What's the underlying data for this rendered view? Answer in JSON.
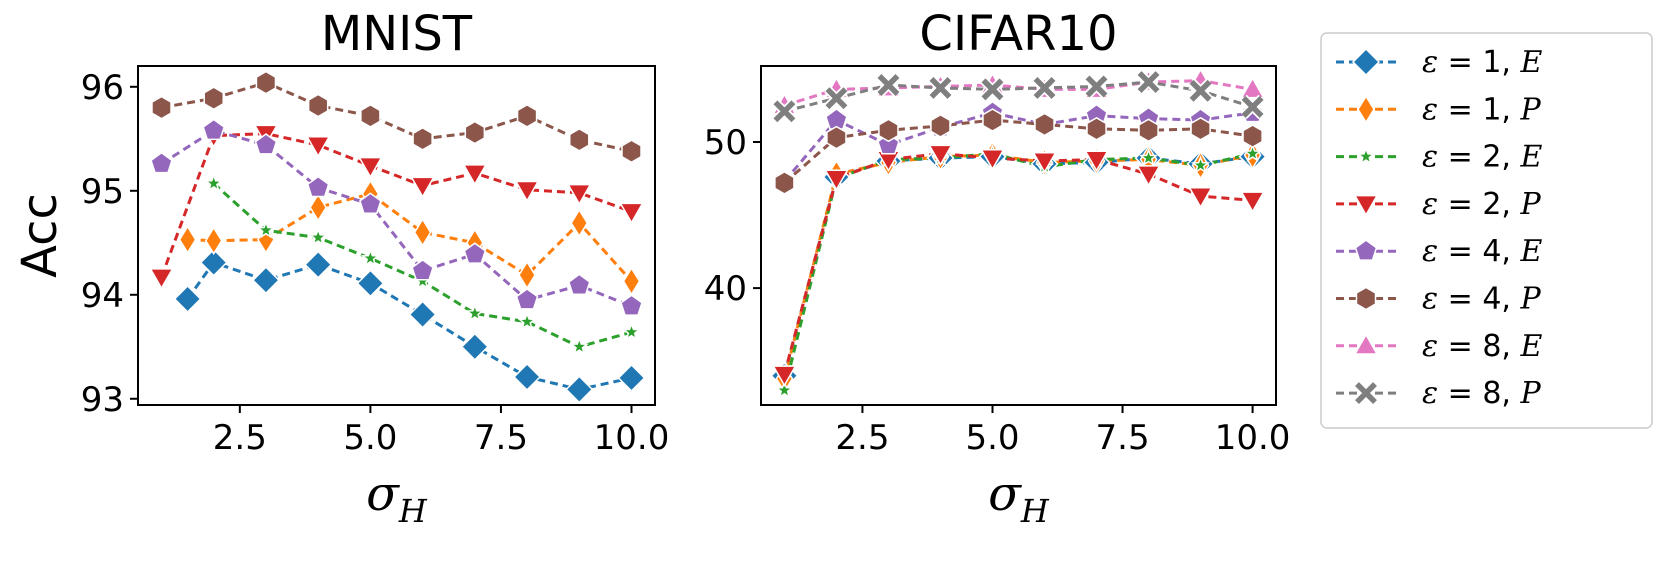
{
  "chart_data": [
    {
      "type": "line",
      "title": "MNIST",
      "xlabel": "σ",
      "xlabel_sub": "H",
      "ylabel": "Acc",
      "xlim": [
        0.55,
        10.45
      ],
      "ylim": [
        92.94,
        96.2
      ],
      "xticks": [
        2.5,
        5.0,
        7.5,
        10.0
      ],
      "xtick_labels": [
        "2.5",
        "5.0",
        "7.5",
        "10.0"
      ],
      "yticks": [
        93,
        94,
        95,
        96
      ],
      "ytick_labels": [
        "93",
        "94",
        "95",
        "96"
      ],
      "series": [
        {
          "key": "e1E",
          "x": [
            1.5,
            2,
            3,
            4,
            5,
            6,
            7,
            8,
            9,
            10
          ],
          "values": [
            93.96,
            94.31,
            94.14,
            94.29,
            94.11,
            93.81,
            93.5,
            93.21,
            93.09,
            93.2
          ]
        },
        {
          "key": "e1P",
          "x": [
            1.5,
            2,
            3,
            4,
            5,
            6,
            7,
            8,
            9,
            10
          ],
          "values": [
            94.53,
            94.52,
            94.53,
            94.84,
            94.97,
            94.6,
            94.5,
            94.19,
            94.69,
            94.13
          ]
        },
        {
          "key": "e2E",
          "x": [
            2,
            3,
            4,
            5,
            6,
            7,
            8,
            9,
            10
          ],
          "values": [
            95.07,
            94.62,
            94.55,
            94.35,
            94.13,
            93.82,
            93.74,
            93.5,
            93.64
          ]
        },
        {
          "key": "e2P",
          "x": [
            1,
            2,
            3,
            4,
            5,
            6,
            7,
            8,
            9,
            10
          ],
          "values": [
            94.17,
            95.53,
            95.55,
            95.44,
            95.24,
            95.05,
            95.17,
            95.01,
            94.98,
            94.8
          ]
        },
        {
          "key": "e4E",
          "x": [
            1,
            2,
            3,
            4,
            5,
            6,
            7,
            8,
            9,
            10
          ],
          "values": [
            95.26,
            95.58,
            95.44,
            95.03,
            94.87,
            94.23,
            94.39,
            93.95,
            94.09,
            93.89
          ]
        },
        {
          "key": "e4P",
          "x": [
            1,
            2,
            3,
            4,
            5,
            6,
            7,
            8,
            9,
            10
          ],
          "values": [
            95.8,
            95.89,
            96.04,
            95.82,
            95.72,
            95.5,
            95.56,
            95.72,
            95.49,
            95.38
          ]
        }
      ]
    },
    {
      "type": "line",
      "title": "CIFAR10",
      "xlabel": "σ",
      "xlabel_sub": "H",
      "ylabel": "",
      "xlim": [
        0.55,
        10.45
      ],
      "ylim": [
        32.0,
        55.2
      ],
      "xticks": [
        2.5,
        5.0,
        7.5,
        10.0
      ],
      "xtick_labels": [
        "2.5",
        "5.0",
        "7.5",
        "10.0"
      ],
      "yticks": [
        40,
        50
      ],
      "ytick_labels": [
        "40",
        "50"
      ],
      "series": [
        {
          "key": "e1E",
          "x": [
            1,
            2,
            3,
            4,
            5,
            6,
            7,
            8,
            9,
            10
          ],
          "values": [
            34.0,
            47.6,
            48.7,
            48.9,
            49.0,
            48.5,
            48.6,
            48.9,
            48.5,
            49.0
          ]
        },
        {
          "key": "e1P",
          "x": [
            1,
            2,
            3,
            4,
            5,
            6,
            7,
            8,
            9,
            10
          ],
          "values": [
            33.8,
            47.8,
            48.6,
            49.0,
            49.1,
            48.6,
            48.7,
            48.8,
            48.4,
            49.1
          ]
        },
        {
          "key": "e2E",
          "x": [
            1,
            2,
            3,
            4,
            5,
            6,
            7,
            8,
            9,
            10
          ],
          "values": [
            33.0,
            47.5,
            48.8,
            48.9,
            49.2,
            48.3,
            48.8,
            48.9,
            48.4,
            49.2
          ]
        },
        {
          "key": "e2P",
          "x": [
            1,
            2,
            3,
            4,
            5,
            6,
            7,
            8,
            9,
            10
          ],
          "values": [
            34.1,
            47.5,
            48.8,
            49.2,
            48.9,
            48.7,
            48.8,
            47.8,
            46.3,
            46.0
          ]
        },
        {
          "key": "e4E",
          "x": [
            1,
            2,
            3,
            4,
            5,
            6,
            7,
            8,
            9,
            10
          ],
          "values": [
            47.3,
            51.5,
            49.8,
            51.0,
            52.0,
            51.2,
            51.8,
            51.6,
            51.5,
            52.0
          ]
        },
        {
          "key": "e4P",
          "x": [
            1,
            2,
            3,
            4,
            5,
            6,
            7,
            8,
            9,
            10
          ],
          "values": [
            47.2,
            50.3,
            50.8,
            51.1,
            51.5,
            51.2,
            50.9,
            50.8,
            50.9,
            50.4
          ]
        },
        {
          "key": "e8E",
          "x": [
            1,
            2,
            3,
            4,
            5,
            6,
            7,
            8,
            9,
            10
          ],
          "values": [
            52.5,
            53.6,
            53.7,
            53.8,
            53.9,
            53.6,
            53.6,
            54.1,
            54.2,
            53.6
          ]
        },
        {
          "key": "e8P",
          "x": [
            1,
            2,
            3,
            4,
            5,
            6,
            7,
            8,
            9,
            10
          ],
          "values": [
            52.1,
            53.0,
            53.9,
            53.7,
            53.6,
            53.7,
            53.8,
            54.1,
            53.5,
            52.4
          ]
        }
      ]
    }
  ],
  "legend": {
    "placement": "right",
    "entries": [
      {
        "key": "e1E",
        "eps_symbol": "ε",
        "eq": "= 1, ",
        "suffix": "E",
        "color": "#1f77b4",
        "marker": "diamond"
      },
      {
        "key": "e1P",
        "eps_symbol": "ε",
        "eq": "= 1, ",
        "suffix": "P",
        "color": "#ff7f0e",
        "marker": "thin-diamond"
      },
      {
        "key": "e2E",
        "eps_symbol": "ε",
        "eq": "= 2, ",
        "suffix": "E",
        "color": "#2ca02c",
        "marker": "star"
      },
      {
        "key": "e2P",
        "eps_symbol": "ε",
        "eq": "= 2, ",
        "suffix": "P",
        "color": "#d62728",
        "marker": "triangle-down"
      },
      {
        "key": "e4E",
        "eps_symbol": "ε",
        "eq": "= 4, ",
        "suffix": "E",
        "color": "#9467bd",
        "marker": "pentagon"
      },
      {
        "key": "e4P",
        "eps_symbol": "ε",
        "eq": "= 4, ",
        "suffix": "P",
        "color": "#8c564b",
        "marker": "hexagon"
      },
      {
        "key": "e8E",
        "eps_symbol": "ε",
        "eq": "= 8, ",
        "suffix": "E",
        "color": "#e377c2",
        "marker": "triangle-up"
      },
      {
        "key": "e8P",
        "eps_symbol": "ε",
        "eq": "= 8, ",
        "suffix": "P",
        "color": "#7f7f7f",
        "marker": "x"
      }
    ]
  }
}
